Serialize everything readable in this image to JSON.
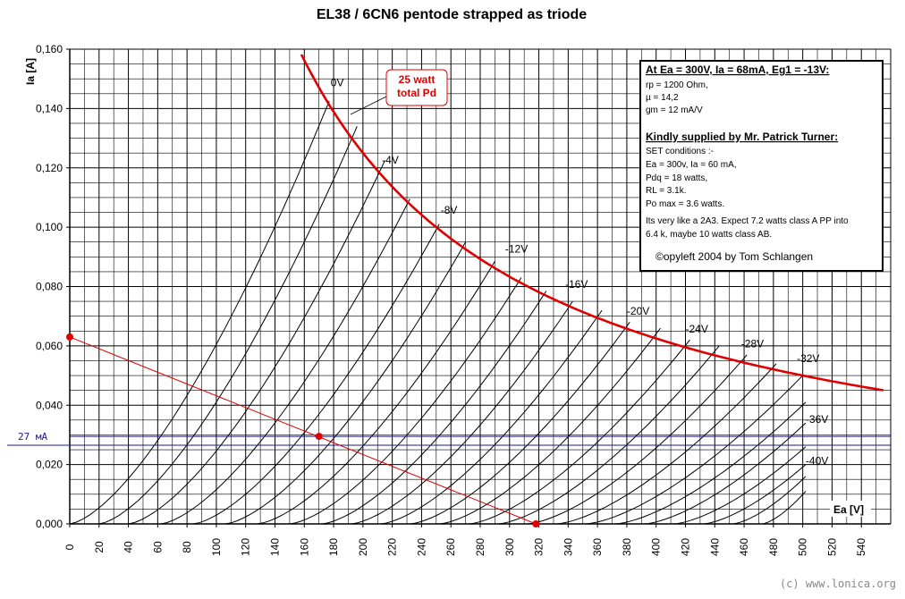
{
  "chart_data": {
    "type": "line",
    "title": "EL38 / 6CN6 pentode strapped as triode",
    "xlabel": "Ea [V]",
    "ylabel": "Ia [A]",
    "xlim": [
      0,
      560
    ],
    "ylim": [
      0,
      0.16
    ],
    "x_ticks": [
      "0",
      "20",
      "40",
      "60",
      "80",
      "100",
      "120",
      "140",
      "160",
      "180",
      "200",
      "220",
      "240",
      "260",
      "280",
      "300",
      "320",
      "340",
      "360",
      "380",
      "400",
      "420",
      "440",
      "460",
      "480",
      "500",
      "520",
      "540"
    ],
    "y_ticks": [
      "0,000",
      "0,020",
      "0,040",
      "0,060",
      "0,080",
      "0,100",
      "0,120",
      "0,140",
      "0,160"
    ],
    "grid": true,
    "grid_minor_x": 10,
    "grid_minor_y": 0.005,
    "curve_labels": [
      {
        "text": "0V",
        "x": 178,
        "y": 0.1475
      },
      {
        "text": "-4V",
        "x": 213,
        "y": 0.1215
      },
      {
        "text": "-8V",
        "x": 253,
        "y": 0.1045
      },
      {
        "text": "-12V",
        "x": 297,
        "y": 0.0915
      },
      {
        "text": "-16V",
        "x": 338,
        "y": 0.0795
      },
      {
        "text": "-20V",
        "x": 380,
        "y": 0.0705
      },
      {
        "text": "-24V",
        "x": 420,
        "y": 0.0645
      },
      {
        "text": "-28V",
        "x": 458,
        "y": 0.0595
      },
      {
        "text": "-32V",
        "x": 496,
        "y": 0.0545
      },
      {
        "text": "-36V",
        "x": 502,
        "y": 0.034
      },
      {
        "text": "-40V",
        "x": 502,
        "y": 0.02
      }
    ],
    "grid_curves": {
      "exponent": 1.5,
      "curves": [
        {
          "x0": 0,
          "x1": 177,
          "y1": 0.1425
        },
        {
          "x0": 20,
          "x1": 196,
          "y1": 0.134
        },
        {
          "x0": 40,
          "x1": 215,
          "y1": 0.1225
        },
        {
          "x0": 62,
          "x1": 232,
          "y1": 0.1095
        },
        {
          "x0": 84,
          "x1": 252,
          "y1": 0.101
        },
        {
          "x0": 106,
          "x1": 270,
          "y1": 0.095
        },
        {
          "x0": 128,
          "x1": 290,
          "y1": 0.0885
        },
        {
          "x0": 150,
          "x1": 308,
          "y1": 0.083
        },
        {
          "x0": 172,
          "x1": 325,
          "y1": 0.0785
        },
        {
          "x0": 192,
          "x1": 343,
          "y1": 0.075
        },
        {
          "x0": 212,
          "x1": 363,
          "y1": 0.072
        },
        {
          "x0": 232,
          "x1": 382,
          "y1": 0.068
        },
        {
          "x0": 252,
          "x1": 403,
          "y1": 0.066
        },
        {
          "x0": 272,
          "x1": 423,
          "y1": 0.062
        },
        {
          "x0": 292,
          "x1": 443,
          "y1": 0.06
        },
        {
          "x0": 312,
          "x1": 462,
          "y1": 0.057
        },
        {
          "x0": 332,
          "x1": 482,
          "y1": 0.054
        },
        {
          "x0": 352,
          "x1": 500,
          "y1": 0.05
        },
        {
          "x0": 372,
          "x1": 502,
          "y1": 0.041
        },
        {
          "x0": 392,
          "x1": 502,
          "y1": 0.034
        },
        {
          "x0": 412,
          "x1": 502,
          "y1": 0.026
        },
        {
          "x0": 432,
          "x1": 502,
          "y1": 0.02
        },
        {
          "x0": 452,
          "x1": 502,
          "y1": 0.016
        },
        {
          "x0": 472,
          "x1": 502,
          "y1": 0.011
        }
      ]
    },
    "max_dissipation": {
      "name": "25 watt total Pd",
      "watts": 25,
      "x_start": 158,
      "x_end": 555
    },
    "load_line": {
      "points": [
        [
          0,
          0.063
        ],
        [
          318,
          0.0
        ]
      ],
      "operating_point": [
        170,
        0.0295
      ]
    },
    "reference_line": {
      "y": 0.0265,
      "label": "27 мA"
    },
    "extra_hline": {
      "y": 0.0295
    }
  },
  "annotations": {
    "callout_line1": "25 watt",
    "callout_line2": "total Pd",
    "hline_label": "27 мA",
    "watermark": "(c) www.lonica.org"
  },
  "info_box": {
    "heading": "At Ea = 300V, Ia = 68mA, Eg1 = -13V:",
    "lines1": [
      "rp = 1200 Ohm,",
      "µ   = 14,2",
      "gm = 12 mA/V"
    ],
    "heading2": "Kindly supplied by Mr. Patrick Turner:",
    "lines2": [
      "SET conditions :-",
      "Ea = 300v, Ia = 60 mA,",
      "Pdq = 18 watts,",
      "RL = 3.1k.",
      "Po max = 3.6 watts."
    ],
    "lines3": [
      "Its very like a 2A3. Expect 7.2 watts class A PP into",
      "6.4 k, maybe 10 watts class AB."
    ],
    "copyleft": "©opyleft 2004 by Tom Schlangen"
  },
  "colors": {
    "grid": "#000000",
    "curve": "#000000",
    "dissipation": "#e00000",
    "load_line": "#e00000",
    "hline": "#1a1a9a"
  }
}
